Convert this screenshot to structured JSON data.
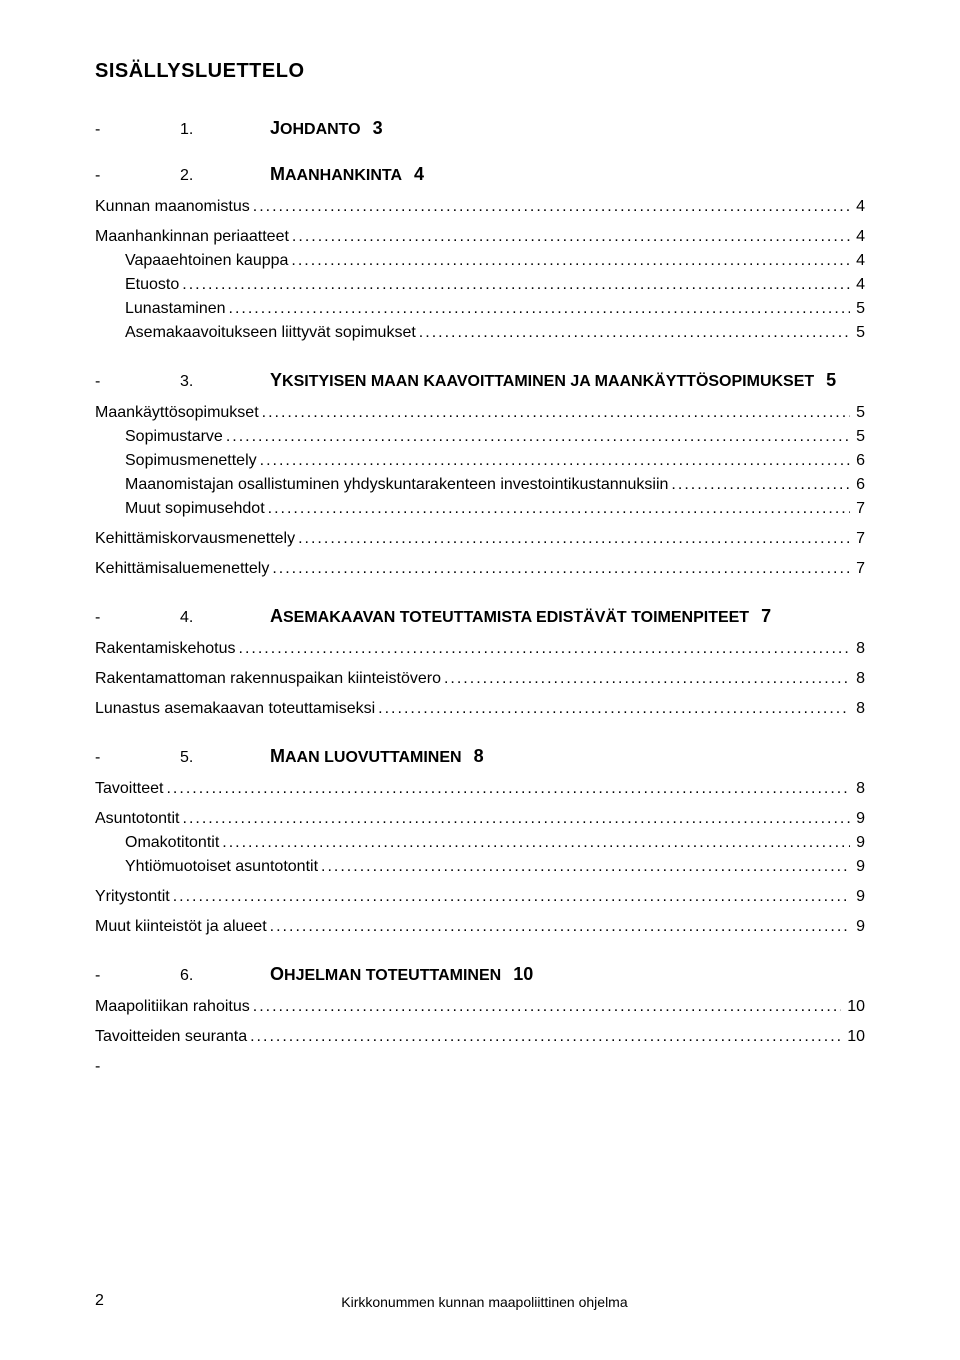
{
  "title": "SISÄLLYSLUETTELO",
  "leader_fill": "..........................................................................................................................................................................................",
  "footer": {
    "page_number": "2",
    "title": "Kirkkonummen kunnan maapoliittinen ohjelma"
  },
  "chapters": [
    {
      "num": "1.",
      "title_first": "J",
      "title_rest": "OHDANTO",
      "page": "3",
      "entries": []
    },
    {
      "num": "2.",
      "title_first": "M",
      "title_rest": "AANHANKINTA",
      "page": "4",
      "entries": [
        {
          "level": 0,
          "label": "Kunnan maanomistus",
          "page": "4"
        },
        {
          "level": 0,
          "label": "Maanhankinnan periaatteet",
          "page": "4"
        },
        {
          "level": 1,
          "label": "Vapaaehtoinen kauppa",
          "page": "4"
        },
        {
          "level": 1,
          "label": "Etuosto",
          "page": "4"
        },
        {
          "level": 1,
          "label": "Lunastaminen",
          "page": "5"
        },
        {
          "level": 1,
          "label": "Asemakaavoitukseen liittyvät sopimukset",
          "page": "5"
        }
      ]
    },
    {
      "num": "3.",
      "title_first": "Y",
      "title_rest": "KSITYISEN MAAN KAAVOITTAMINEN JA MAANKÄYTTÖSOPIMUKSET",
      "page": "5",
      "entries": [
        {
          "level": 0,
          "label": "Maankäyttösopimukset",
          "page": "5"
        },
        {
          "level": 1,
          "label": "Sopimustarve",
          "page": "5"
        },
        {
          "level": 1,
          "label": "Sopimusmenettely",
          "page": "6"
        },
        {
          "level": 1,
          "label": "Maanomistajan osallistuminen yhdyskuntarakenteen investointikustannuksiin",
          "page": "6"
        },
        {
          "level": 1,
          "label": "Muut sopimusehdot",
          "page": "7"
        },
        {
          "level": 0,
          "label": "Kehittämiskorvausmenettely",
          "page": "7"
        },
        {
          "level": 0,
          "label": "Kehittämisaluemenettely",
          "page": "7"
        }
      ]
    },
    {
      "num": "4.",
      "title_first": "A",
      "title_rest": "SEMAKAAVAN TOTEUTTAMISTA EDISTÄVÄT TOIMENPITEET",
      "page": "7",
      "entries": [
        {
          "level": 0,
          "label": "Rakentamiskehotus",
          "page": "8"
        },
        {
          "level": 0,
          "label": "Rakentamattoman rakennuspaikan kiinteistövero",
          "page": "8"
        },
        {
          "level": 0,
          "label": "Lunastus asemakaavan toteuttamiseksi",
          "page": "8"
        }
      ]
    },
    {
      "num": "5.",
      "title_first": "M",
      "title_rest": "AAN LUOVUTTAMINEN",
      "page": "8",
      "entries": [
        {
          "level": 0,
          "label": "Tavoitteet",
          "page": "8"
        },
        {
          "level": 0,
          "label": "Asuntotontit",
          "page": "9"
        },
        {
          "level": 1,
          "label": "Omakotitontit",
          "page": "9"
        },
        {
          "level": 1,
          "label": "Yhtiömuotoiset asuntotontit",
          "page": "9"
        },
        {
          "level": 0,
          "label": "Yritystontit",
          "page": "9"
        },
        {
          "level": 0,
          "label": "Muut kiinteistöt ja alueet",
          "page": "9"
        }
      ]
    },
    {
      "num": "6.",
      "title_first": "O",
      "title_rest": "HJELMAN TOTEUTTAMINEN",
      "page": "10",
      "entries": [
        {
          "level": 0,
          "label": "Maapolitiikan rahoitus",
          "page": "10"
        },
        {
          "level": 0,
          "label": "Tavoitteiden seuranta",
          "page": "10"
        }
      ]
    }
  ],
  "dash": "-",
  "trailing_dash": "-"
}
